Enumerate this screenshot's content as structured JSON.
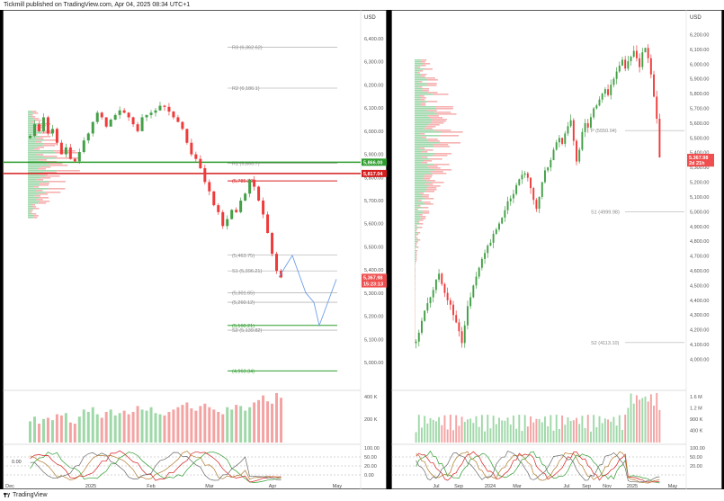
{
  "header": {
    "published_text": "Tickmill published on TradingView.com, Apr 04, 2025 08:34 UTC+1"
  },
  "footer": {
    "brand": "TradingView"
  },
  "colors": {
    "bull": "#43a047",
    "bear": "#ef3b3b",
    "support_line": "#2e9d2e",
    "resistance_line": "#d61f1f",
    "projection": "#6fa0e8",
    "price_badge": "#ef4f4f",
    "pivot_line": "#9e9e9e"
  },
  "chart_data": [
    {
      "type": "candlestick",
      "panel": "left",
      "timeframe_inferred": "daily",
      "currency": "USD",
      "x_tick_labels": [
        "Dec",
        "2025",
        "Feb",
        "Mar",
        "Apr",
        "May"
      ],
      "y_tick_labels": [
        "6,400.00",
        "6,300.00",
        "6,200.00",
        "6,100.00",
        "6,000.00",
        "5,900.00",
        "5,800.00",
        "5,700.00",
        "5,600.00",
        "5,500.00",
        "5,400.00",
        "5,300.00",
        "5,200.00",
        "5,100.00",
        "5,000.00"
      ],
      "ylim": [
        4930,
        6470
      ],
      "grid": false,
      "levels": [
        {
          "label": "R3 (6,362.62)",
          "value": 6362.62
        },
        {
          "label": "R2 (6,186.1)",
          "value": 6186.1
        },
        {
          "label": "R1 (5,860.7)",
          "value": 5860.7
        },
        {
          "label": "(5,785.30)",
          "value": 5785.3
        },
        {
          "label": "(5,463.75)",
          "value": 5463.75
        },
        {
          "label": "S1 (5,396.21)",
          "value": 5396.21
        },
        {
          "label": "(5,301.65)",
          "value": 5301.65
        },
        {
          "label": "(5,260.12)",
          "value": 5260.12
        },
        {
          "label": "S2 (5,139.82)",
          "value": 5139.82
        },
        {
          "label": "(5,160.21)",
          "value": 5160.21
        },
        {
          "label": "(4,963.34)",
          "value": 4963.34
        }
      ],
      "badges": [
        {
          "text": "5,866.00",
          "value": 5866.0,
          "color": "#2e9d2e"
        },
        {
          "text": "5,817.04",
          "value": 5817.04,
          "color": "#d61f1f"
        },
        {
          "text": "5,367.98",
          "value": 5367.98,
          "color": "#ef4f4f"
        },
        {
          "text": "15:23:13",
          "value": 5340,
          "color": "#ef4f4f"
        }
      ],
      "horizontal_lines": [
        {
          "value": 5866.0,
          "color": "#2e9d2e"
        },
        {
          "value": 5817.04,
          "color": "#d61f1f"
        }
      ],
      "close_series": [
        5980,
        6030,
        6000,
        6060,
        5990,
        6010,
        5950,
        5900,
        5930,
        5880,
        5870,
        5910,
        5960,
        5990,
        6040,
        6080,
        6060,
        6020,
        6050,
        6070,
        6090,
        6080,
        6060,
        6030,
        6000,
        6060,
        6070,
        6080,
        6090,
        6110,
        6105,
        6085,
        6060,
        6040,
        6010,
        5950,
        5900,
        5880,
        5840,
        5780,
        5740,
        5680,
        5650,
        5590,
        5620,
        5660,
        5650,
        5700,
        5730,
        5790,
        5760,
        5700,
        5640,
        5560,
        5470,
        5396,
        5368
      ],
      "volume_axis_labels": [
        "400 K",
        "200 K"
      ],
      "volume_series": [
        180,
        220,
        160,
        200,
        210,
        190,
        240,
        230,
        250,
        170,
        160,
        220,
        280,
        260,
        300,
        240,
        210,
        260,
        280,
        230,
        250,
        270,
        240,
        260,
        310,
        280,
        270,
        300,
        250,
        240,
        230,
        260,
        280,
        300,
        320,
        340,
        290,
        270,
        310,
        330,
        300,
        280,
        260,
        240,
        300,
        280,
        320,
        310,
        270,
        300,
        340,
        360,
        400,
        350,
        330,
        420,
        380
      ],
      "oscillator_axis_labels": [
        "100.00",
        "50.00",
        "20.00",
        "0.00"
      ],
      "oscillator_left_label": "0.00"
    },
    {
      "type": "candlestick",
      "panel": "right",
      "timeframe_inferred": "weekly",
      "currency": "USD",
      "x_tick_labels": [
        "Jul",
        "Sep",
        "2024",
        "Mar",
        "Jul",
        "Sep",
        "Nov",
        "2025",
        "May"
      ],
      "y_tick_labels": [
        "6,200.00",
        "6,100.00",
        "6,000.00",
        "5,900.00",
        "5,800.00",
        "5,700.00",
        "5,600.00",
        "5,500.00",
        "5,400.00",
        "5,300.00",
        "5,200.00",
        "5,100.00",
        "5,000.00",
        "4,900.00",
        "4,800.00",
        "4,700.00",
        "4,600.00",
        "4,500.00",
        "4,400.00",
        "4,300.00",
        "4,200.00",
        "4,100.00",
        "4,000.00"
      ],
      "ylim": [
        3960,
        6270
      ],
      "grid": false,
      "levels": [
        {
          "label": "P (5550.04)",
          "value": 5550.04
        },
        {
          "label": "S1 (4999.98)",
          "value": 4999.98
        },
        {
          "label": "S2 (4113.10)",
          "value": 4113.1
        }
      ],
      "badges": [
        {
          "text": "5,367.98",
          "value": 5367.98,
          "color": "#ef4f4f"
        },
        {
          "text": "2d 21h",
          "value": 5330,
          "color": "#ef4f4f"
        }
      ],
      "close_series": [
        4120,
        4180,
        4260,
        4330,
        4380,
        4420,
        4470,
        4540,
        4580,
        4510,
        4450,
        4400,
        4370,
        4300,
        4250,
        4190,
        4110,
        4230,
        4360,
        4420,
        4500,
        4560,
        4620,
        4680,
        4720,
        4770,
        4790,
        4850,
        4880,
        4920,
        4960,
        5010,
        5070,
        5090,
        5120,
        5180,
        5220,
        5250,
        5260,
        5230,
        5160,
        5080,
        5020,
        5100,
        5200,
        5280,
        5300,
        5350,
        5420,
        5470,
        5500,
        5460,
        5530,
        5580,
        5620,
        5480,
        5340,
        5420,
        5540,
        5600,
        5570,
        5640,
        5700,
        5720,
        5760,
        5800,
        5830,
        5790,
        5860,
        5900,
        5950,
        5990,
        6030,
        5970,
        6020,
        6050,
        6090,
        6040,
        5980,
        6080,
        6110,
        6040,
        5930,
        5780,
        5630,
        5367.98
      ],
      "volume_axis_labels": [
        "1.6 M",
        "1.2 M",
        "900 K",
        "400 K"
      ],
      "oscillator_axis_labels": [
        "100.00",
        "50.00",
        "20.00"
      ],
      "oscillator_left_labels": [
        "100.00",
        "0.00"
      ]
    }
  ]
}
